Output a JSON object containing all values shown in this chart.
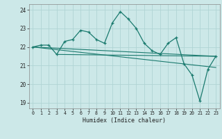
{
  "main_line": [
    22.0,
    22.1,
    22.1,
    21.6,
    22.3,
    22.4,
    22.9,
    22.8,
    22.4,
    22.2,
    23.3,
    23.9,
    23.5,
    23.0,
    22.2,
    21.8,
    21.6,
    22.2,
    22.5,
    21.1,
    20.5,
    19.1,
    20.8,
    21.5
  ],
  "trend_line1": [
    [
      0,
      22.0
    ],
    [
      23,
      21.5
    ]
  ],
  "trend_line2": [
    [
      0,
      22.0
    ],
    [
      23,
      20.9
    ]
  ],
  "trend_line3": [
    [
      3,
      21.6
    ],
    [
      23,
      21.5
    ]
  ],
  "x_ticks": [
    0,
    1,
    2,
    3,
    4,
    5,
    6,
    7,
    8,
    9,
    10,
    11,
    12,
    13,
    14,
    15,
    16,
    17,
    18,
    19,
    20,
    21,
    22,
    23
  ],
  "y_ticks": [
    19,
    20,
    21,
    22,
    23,
    24
  ],
  "ylim": [
    18.7,
    24.3
  ],
  "xlim": [
    -0.5,
    23.5
  ],
  "xlabel": "Humidex (Indice chaleur)",
  "bg_color": "#cce8e8",
  "grid_color": "#b0d4d4",
  "line_color": "#1a7a6e"
}
